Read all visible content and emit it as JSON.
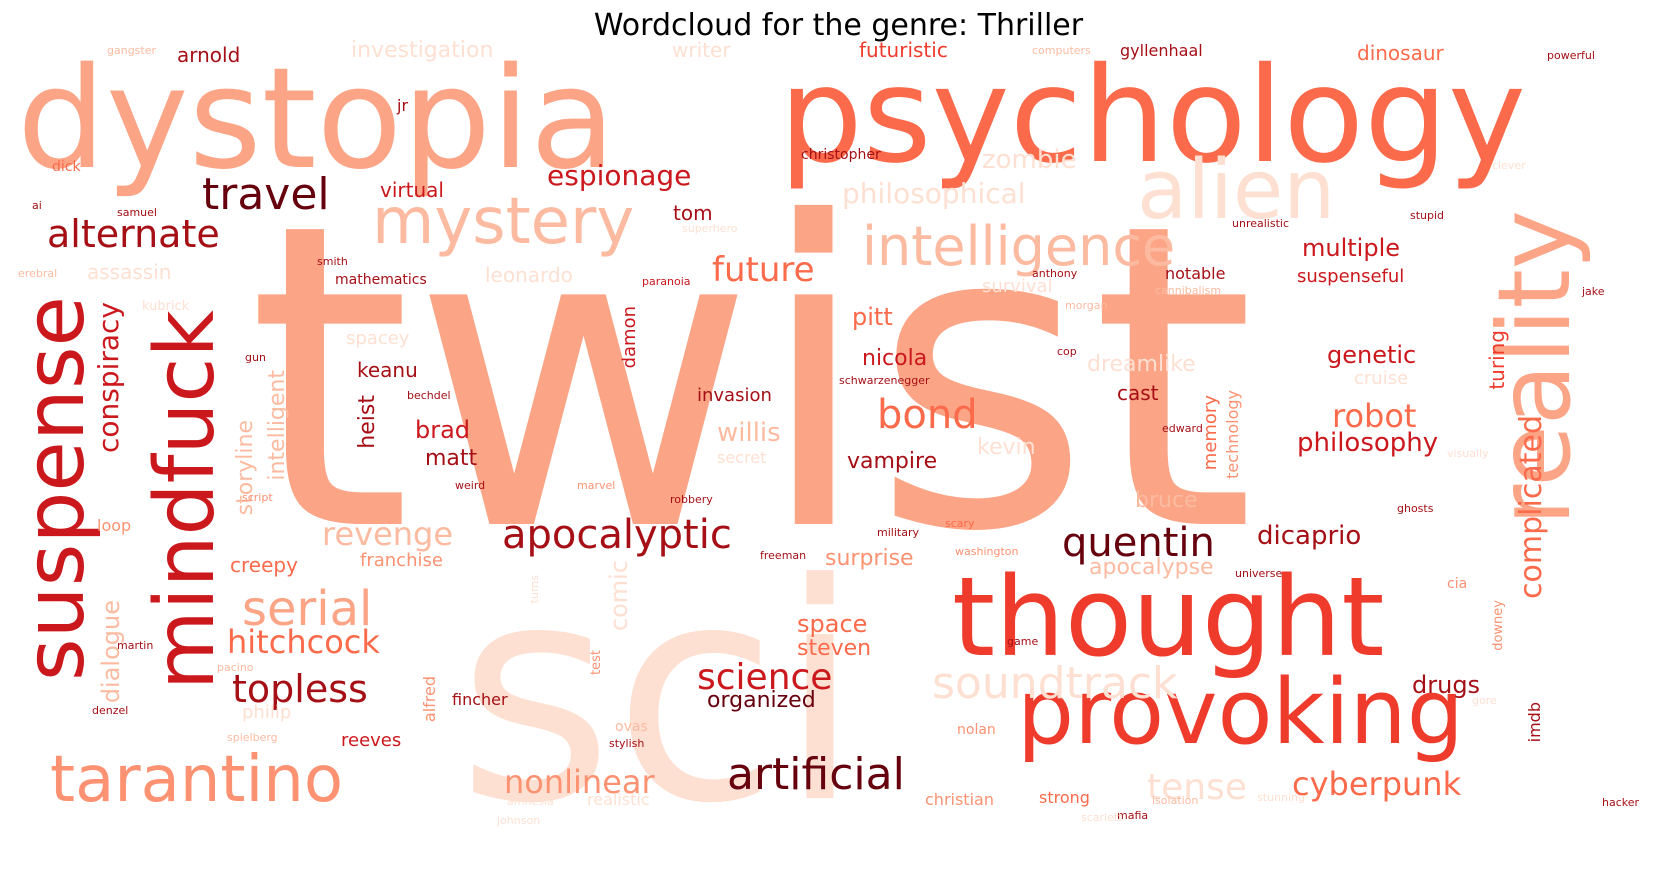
{
  "title": "Wordcloud for the genre: Thriller",
  "palette": {
    "darkest": "#67000d",
    "dark": "#a50f15",
    "red": "#cb181d",
    "mid": "#ef3b2c",
    "salmon": "#fb6a4a",
    "light": "#fc9272",
    "pale": "#fcbba1",
    "palest": "#fee0d2"
  },
  "words": [
    {
      "text": "twist"
    },
    {
      "text": "sci"
    },
    {
      "text": "dystopia"
    },
    {
      "text": "psychology"
    },
    {
      "text": "reality"
    },
    {
      "text": "thought"
    },
    {
      "text": "provoking"
    },
    {
      "text": "suspense"
    },
    {
      "text": "mindfuck"
    },
    {
      "text": "alien"
    },
    {
      "text": "mystery"
    },
    {
      "text": "intelligence"
    },
    {
      "text": "tarantino"
    },
    {
      "text": "artificial"
    },
    {
      "text": "apocalyptic"
    },
    {
      "text": "quentin"
    },
    {
      "text": "serial"
    },
    {
      "text": "topless"
    },
    {
      "text": "soundtrack"
    },
    {
      "text": "travel"
    },
    {
      "text": "alternate"
    },
    {
      "text": "bond"
    },
    {
      "text": "complicated"
    },
    {
      "text": "espionage"
    },
    {
      "text": "future"
    },
    {
      "text": "hitchcock"
    },
    {
      "text": "science"
    },
    {
      "text": "cyberpunk"
    },
    {
      "text": "nonlinear"
    },
    {
      "text": "tense"
    },
    {
      "text": "conspiracy"
    },
    {
      "text": "philosophy"
    },
    {
      "text": "robot"
    },
    {
      "text": "revenge"
    },
    {
      "text": "philosophical"
    },
    {
      "text": "zombie"
    },
    {
      "text": "dicaprio"
    },
    {
      "text": "multiple"
    },
    {
      "text": "genetic"
    },
    {
      "text": "space"
    },
    {
      "text": "steven"
    },
    {
      "text": "organized"
    },
    {
      "text": "drugs"
    },
    {
      "text": "comic"
    },
    {
      "text": "dialogue"
    },
    {
      "text": "storyline"
    },
    {
      "text": "intelligent"
    },
    {
      "text": "heist"
    },
    {
      "text": "brad"
    },
    {
      "text": "matt"
    },
    {
      "text": "keanu"
    },
    {
      "text": "pitt"
    },
    {
      "text": "nicola"
    },
    {
      "text": "willis"
    },
    {
      "text": "vampire"
    },
    {
      "text": "surprise"
    },
    {
      "text": "apocalypse"
    },
    {
      "text": "creepy"
    },
    {
      "text": "franchise"
    },
    {
      "text": "investigation"
    },
    {
      "text": "futuristic"
    },
    {
      "text": "dinosaur"
    },
    {
      "text": "arnold"
    },
    {
      "text": "virtual"
    },
    {
      "text": "tom"
    },
    {
      "text": "cast"
    },
    {
      "text": "kevin"
    },
    {
      "text": "bruce"
    },
    {
      "text": "memory"
    },
    {
      "text": "technology"
    },
    {
      "text": "turing"
    },
    {
      "text": "suspenseful"
    },
    {
      "text": "notable"
    },
    {
      "text": "mathematics"
    },
    {
      "text": "invasion"
    },
    {
      "text": "reeves"
    },
    {
      "text": "christopher"
    },
    {
      "text": "gyllenhaal"
    },
    {
      "text": "writer"
    },
    {
      "text": "leonardo"
    },
    {
      "text": "assassin"
    },
    {
      "text": "damon"
    },
    {
      "text": "spacey"
    },
    {
      "text": "dreamlike"
    },
    {
      "text": "cruise"
    },
    {
      "text": "alfred"
    },
    {
      "text": "philip"
    },
    {
      "text": "christian"
    },
    {
      "text": "strong"
    },
    {
      "text": "nolan"
    },
    {
      "text": "imdb"
    },
    {
      "text": "downey"
    },
    {
      "text": "loop"
    },
    {
      "text": "secret"
    },
    {
      "text": "cannibalism"
    },
    {
      "text": "morgan"
    },
    {
      "text": "anthony"
    },
    {
      "text": "paranoia"
    },
    {
      "text": "survival"
    },
    {
      "text": "dick"
    },
    {
      "text": "jr"
    },
    {
      "text": "gangster"
    },
    {
      "text": "computers"
    },
    {
      "text": "powerful"
    },
    {
      "text": "unrealistic"
    },
    {
      "text": "stupid"
    },
    {
      "text": "jake"
    },
    {
      "text": "cerebral"
    },
    {
      "text": "smith"
    },
    {
      "text": "samuel"
    },
    {
      "text": "ai"
    },
    {
      "text": "schwarzenegger"
    },
    {
      "text": "cop"
    },
    {
      "text": "edward"
    },
    {
      "text": "marvel"
    },
    {
      "text": "robbery"
    },
    {
      "text": "military"
    },
    {
      "text": "washington"
    },
    {
      "text": "freeman"
    },
    {
      "text": "universe"
    },
    {
      "text": "cia"
    },
    {
      "text": "ghosts"
    },
    {
      "text": "fincher"
    },
    {
      "text": "test"
    },
    {
      "text": "ovas"
    },
    {
      "text": "stylish"
    },
    {
      "text": "weird"
    },
    {
      "text": "scary"
    },
    {
      "text": "bechdel"
    },
    {
      "text": "game"
    },
    {
      "text": "spielberg"
    },
    {
      "text": "pacino"
    },
    {
      "text": "martin"
    },
    {
      "text": "isolation"
    },
    {
      "text": "mafia"
    },
    {
      "text": "hacker"
    },
    {
      "text": "realistic"
    },
    {
      "text": "kubrick"
    },
    {
      "text": "turns"
    },
    {
      "text": "gun"
    },
    {
      "text": "superhero"
    },
    {
      "text": "amnesia"
    },
    {
      "text": "visually"
    },
    {
      "text": "clever"
    },
    {
      "text": "stunning"
    },
    {
      "text": "johnson"
    },
    {
      "text": "script"
    },
    {
      "text": "denzel"
    },
    {
      "text": "scarlett"
    },
    {
      "text": "gore"
    }
  ]
}
